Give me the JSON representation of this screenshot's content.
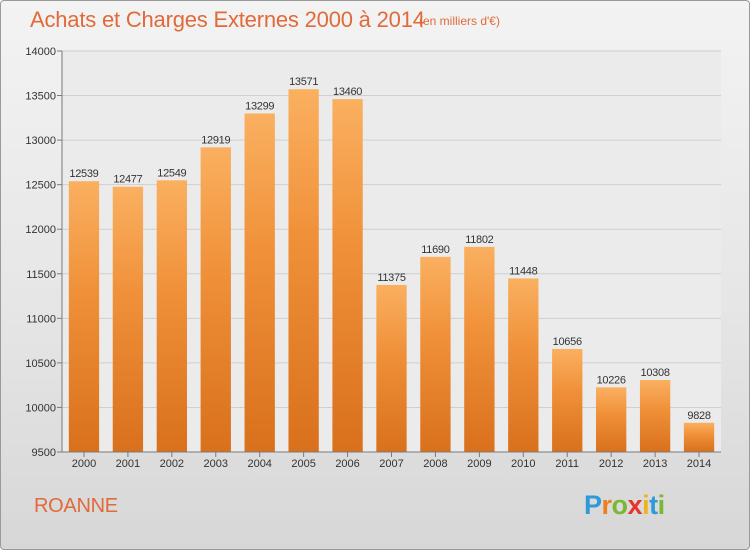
{
  "chart_data": {
    "type": "bar",
    "title": "Achats et Charges Externes 2000 à 2014",
    "subtitle": "(en milliers d'€)",
    "categories": [
      "2000",
      "2001",
      "2002",
      "2003",
      "2004",
      "2005",
      "2006",
      "2007",
      "2008",
      "2009",
      "2010",
      "2011",
      "2012",
      "2013",
      "2014"
    ],
    "values": [
      12539,
      12477,
      12549,
      12919,
      13299,
      13571,
      13460,
      11375,
      11690,
      11802,
      11448,
      10656,
      10226,
      10308,
      9828
    ],
    "ylim": [
      9500,
      14000
    ],
    "yticks": [
      9500,
      10000,
      10500,
      11000,
      11500,
      12000,
      12500,
      13000,
      13500,
      14000
    ],
    "grid": true,
    "bar_color": "#f0913a",
    "bar_color_top": "#fab060",
    "bar_color_bottom": "#d9701c"
  },
  "footer": {
    "city": "ROANNE",
    "logo_letters": [
      {
        "ch": "P",
        "color": "#2f9ad8"
      },
      {
        "ch": "r",
        "color": "#f07e1b"
      },
      {
        "ch": "o",
        "color": "#78b833"
      },
      {
        "ch": "x",
        "color": "#e8332b"
      },
      {
        "ch": "i",
        "color": "#f0b11b"
      },
      {
        "ch": "t",
        "color": "#2f9ad8"
      },
      {
        "ch": "i",
        "color": "#78b833"
      }
    ]
  }
}
